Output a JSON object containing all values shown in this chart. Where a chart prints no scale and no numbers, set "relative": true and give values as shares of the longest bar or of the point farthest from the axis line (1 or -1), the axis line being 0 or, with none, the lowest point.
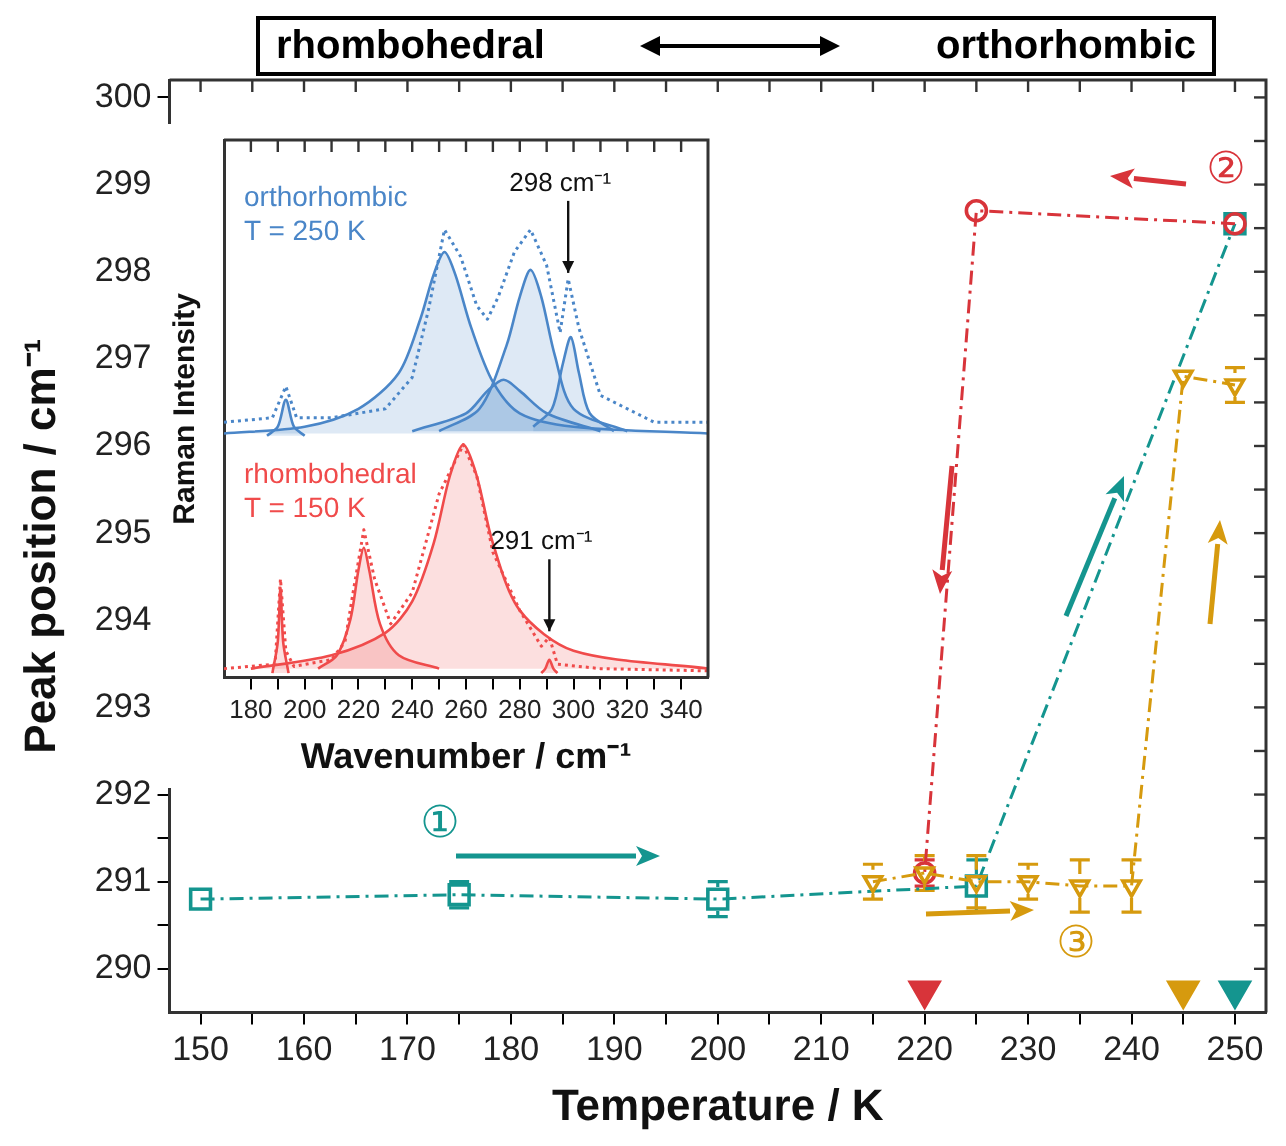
{
  "chart_data": [
    {
      "type": "line",
      "xlabel": "Temperature / K",
      "ylabel": "Peak position / cm⁻¹",
      "xlim": [
        147,
        253
      ],
      "xticks": [
        150,
        {
          "value": 155,
          "label": null
        },
        160,
        {
          "value": 165,
          "label": null
        },
        170,
        {
          "value": 175,
          "label": null
        },
        180,
        {
          "value": 185,
          "label": null
        },
        190,
        {
          "value": 195,
          "label": null
        },
        200,
        {
          "value": 205,
          "label": null
        },
        210,
        {
          "value": 215,
          "label": null
        },
        220,
        {
          "value": 225,
          "label": null
        },
        230,
        {
          "value": 235,
          "label": null
        },
        240,
        {
          "value": 245,
          "label": null
        },
        250
      ],
      "ylim": [
        289.5,
        300.2
      ],
      "yticks": [
        290,
        {
          "value": 290.5,
          "label": null
        },
        291,
        {
          "value": 291.5,
          "label": null
        },
        292,
        {
          "value": 292.5,
          "label": null
        },
        293,
        {
          "value": 293.5,
          "label": null
        },
        294,
        {
          "value": 294.5,
          "label": null
        },
        295,
        {
          "value": 295.5,
          "label": null
        },
        296,
        {
          "value": 296.5,
          "label": null
        },
        297,
        {
          "value": 297.5,
          "label": null
        },
        298,
        {
          "value": 298.5,
          "label": null
        },
        299,
        {
          "value": 299.5,
          "label": null
        },
        300
      ],
      "grid": false,
      "legend": false,
      "line_style": "dashed",
      "series": [
        {
          "color": "#14958f",
          "marker": "square",
          "x": [
            150,
            175,
            200,
            225,
            250
          ],
          "values": [
            290.8,
            290.85,
            290.8,
            290.95,
            298.55
          ],
          "errors": [
            null,
            0.15,
            0.2,
            0.3,
            null
          ]
        },
        {
          "color": "#d8343a",
          "marker": "circle",
          "x": [
            250,
            225,
            220
          ],
          "values": [
            298.55,
            298.7,
            291.1
          ],
          "errors": [
            null,
            null,
            0.15
          ]
        },
        {
          "color": "#d69a0e",
          "marker": "triangle",
          "x": [
            215,
            220,
            225,
            230,
            235,
            240,
            245,
            250
          ],
          "values": [
            291.0,
            291.1,
            291.0,
            291.0,
            290.95,
            290.95,
            296.8,
            296.7
          ],
          "errors": [
            0.2,
            0.2,
            0.3,
            0.2,
            0.3,
            0.3,
            null,
            0.2
          ]
        },
        {
          "type": "scatter",
          "color": "#d8343a",
          "marker": "triangle",
          "x": [
            220
          ],
          "values": [
            289.75
          ]
        },
        {
          "type": "scatter",
          "color": "#d69a0e",
          "marker": "triangle",
          "x": [
            245
          ],
          "values": [
            289.75
          ]
        },
        {
          "type": "scatter",
          "color": "#14958f",
          "marker": "triangle",
          "x": [
            250
          ],
          "values": [
            289.75
          ]
        }
      ],
      "annotations": [
        "rhombohedral",
        "orthorhombic",
        "①",
        "②",
        "③"
      ]
    },
    {
      "type": "line",
      "xlabel": "Wavenumber / cm⁻¹",
      "ylabel": "Raman Intensity",
      "relative": true,
      "tick_labels": "x",
      "grid": false,
      "legend": false,
      "xlim": [
        170,
        350
      ],
      "xticks": [
        180,
        {
          "value": 190,
          "label": null
        },
        200,
        {
          "value": 210,
          "label": null
        },
        220,
        {
          "value": 230,
          "label": null
        },
        240,
        {
          "value": 250,
          "label": null
        },
        260,
        {
          "value": 270,
          "label": null
        },
        280,
        {
          "value": 290,
          "label": null
        },
        300,
        {
          "value": 310,
          "label": null
        },
        320,
        {
          "value": 330,
          "label": null
        },
        340
      ],
      "series": [
        {
          "type": "area",
          "color": "#4a86c8",
          "x": [
            186,
            190,
            193,
            196,
            200
          ],
          "values": [
            0.54,
            0.56,
            0.62,
            0.56,
            0.54
          ]
        },
        {
          "type": "area",
          "color": "#4a86c8",
          "x": [
            170,
            200,
            220,
            235,
            243,
            248,
            252,
            256,
            262,
            270,
            280,
            300,
            350
          ],
          "values": [
            0.545,
            0.56,
            0.6,
            0.68,
            0.8,
            0.9,
            0.95,
            0.9,
            0.78,
            0.66,
            0.59,
            0.56,
            0.545
          ]
        },
        {
          "type": "area",
          "color": "#4a86c8",
          "x": [
            240,
            260,
            268,
            274,
            280,
            290,
            310
          ],
          "values": [
            0.55,
            0.59,
            0.64,
            0.665,
            0.64,
            0.59,
            0.55
          ]
        },
        {
          "type": "area",
          "color": "#4a86c8",
          "x": [
            250,
            265,
            275,
            280,
            284,
            288,
            293,
            300,
            320
          ],
          "values": [
            0.55,
            0.6,
            0.74,
            0.85,
            0.91,
            0.85,
            0.72,
            0.6,
            0.55
          ]
        },
        {
          "type": "area",
          "color": "#4a86c8",
          "x": [
            285,
            292,
            296,
            299,
            302,
            306,
            315
          ],
          "values": [
            0.56,
            0.6,
            0.7,
            0.76,
            0.68,
            0.59,
            0.55
          ]
        },
        {
          "name": "orthorhombic\nT = 250 K",
          "line_style": "dotted",
          "color": "#4a86c8",
          "x": [
            170,
            188,
            193,
            197,
            210,
            230,
            240,
            246,
            252,
            258,
            264,
            268,
            272,
            278,
            284,
            290,
            295,
            298,
            302,
            310,
            330,
            350
          ],
          "values": [
            0.57,
            0.58,
            0.65,
            0.58,
            0.58,
            0.6,
            0.67,
            0.82,
            1.0,
            0.94,
            0.83,
            0.8,
            0.85,
            0.95,
            1.0,
            0.92,
            0.77,
            0.89,
            0.78,
            0.63,
            0.57,
            0.57
          ]
        },
        {
          "type": "area",
          "color": "#f04b4b",
          "x": [
            188,
            190,
            191,
            192,
            194
          ],
          "values": [
            0.01,
            0.08,
            0.2,
            0.08,
            0.01
          ]
        },
        {
          "type": "area",
          "color": "#f04b4b",
          "x": [
            205,
            212,
            217,
            220,
            222,
            224,
            228,
            235,
            250
          ],
          "values": [
            0.02,
            0.05,
            0.13,
            0.24,
            0.29,
            0.24,
            0.12,
            0.05,
            0.02
          ]
        },
        {
          "type": "area",
          "color": "#f04b4b",
          "x": [
            180,
            210,
            230,
            240,
            248,
            254,
            259,
            264,
            270,
            280,
            300,
            350
          ],
          "values": [
            0.02,
            0.05,
            0.1,
            0.17,
            0.3,
            0.45,
            0.52,
            0.45,
            0.3,
            0.15,
            0.06,
            0.02
          ]
        },
        {
          "type": "area",
          "color": "#f04b4b",
          "x": [
            288,
            289.5,
            291,
            292.5,
            294
          ],
          "values": [
            0.01,
            0.02,
            0.04,
            0.02,
            0.01
          ]
        },
        {
          "name": "rhombohedral\nT = 150 K",
          "line_style": "dotted",
          "color": "#f04b4b",
          "x": [
            170,
            189,
            191,
            193,
            196,
            210,
            215,
            218,
            222,
            226,
            232,
            240,
            250,
            259,
            264,
            270,
            280,
            288,
            291,
            294,
            310,
            350
          ],
          "values": [
            0.02,
            0.03,
            0.22,
            0.06,
            0.025,
            0.04,
            0.08,
            0.19,
            0.33,
            0.22,
            0.12,
            0.19,
            0.41,
            0.52,
            0.45,
            0.28,
            0.15,
            0.07,
            0.09,
            0.03,
            0.02,
            0.015
          ]
        }
      ],
      "annotations": [
        {
          "text": "298 cm⁻¹",
          "x": 298,
          "y": 0.89
        },
        {
          "text": "291 cm⁻¹",
          "x": 291,
          "y": 0.09
        }
      ]
    }
  ]
}
